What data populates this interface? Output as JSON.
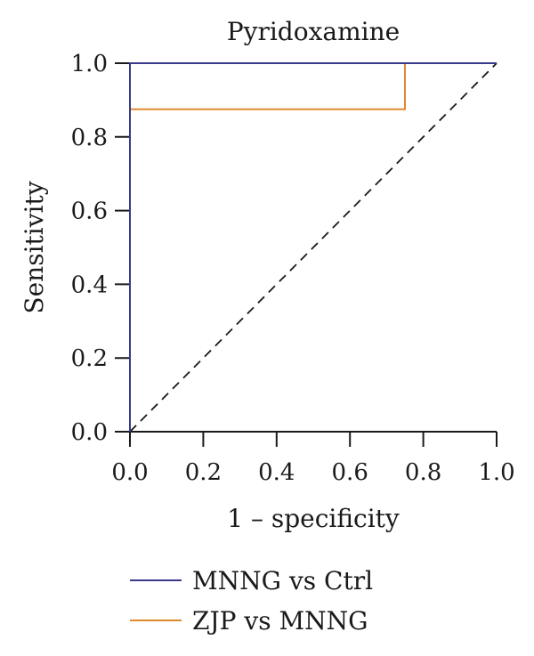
{
  "chart_data": {
    "type": "line",
    "title": "Pyridoxamine",
    "xlabel": "1 – specificity",
    "ylabel": "Sensitivity",
    "xlim": [
      0,
      1
    ],
    "ylim": [
      0,
      1
    ],
    "x_ticks": [
      "0.0",
      "0.2",
      "0.4",
      "0.6",
      "0.8",
      "1.0"
    ],
    "y_ticks": [
      "0.0",
      "0.2",
      "0.4",
      "0.6",
      "0.8",
      "1.0"
    ],
    "grid": false,
    "legend_position": "bottom",
    "reference_line": {
      "style": "dashed",
      "color": "#1a1a1a",
      "points": [
        [
          0,
          0
        ],
        [
          1,
          1
        ]
      ]
    },
    "series": [
      {
        "name": "MNNG vs Ctrl",
        "color": "#3a3a8c",
        "points": [
          [
            0,
            0
          ],
          [
            0,
            1
          ],
          [
            1,
            1
          ]
        ]
      },
      {
        "name": "ZJP vs MNNG",
        "color": "#e08a2e",
        "points": [
          [
            0,
            0
          ],
          [
            0,
            0.875
          ],
          [
            0.75,
            0.875
          ],
          [
            0.75,
            1
          ],
          [
            1,
            1
          ]
        ]
      }
    ]
  }
}
